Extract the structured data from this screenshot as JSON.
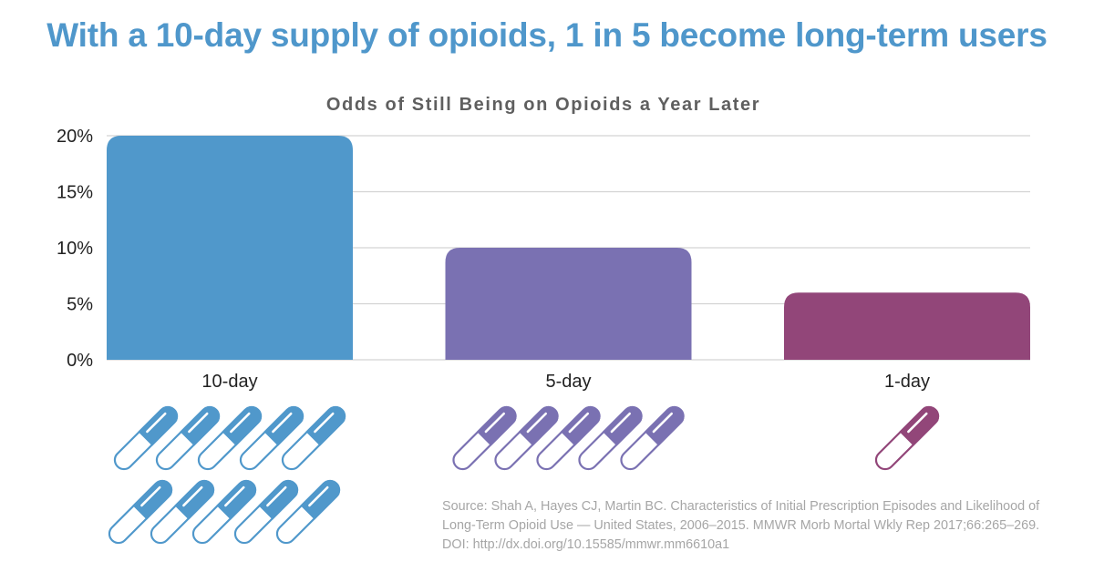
{
  "headline": "With a 10-day supply of opioids, 1 in 5 become long-term users",
  "chart_data": {
    "type": "bar",
    "title": "Odds of Still Being on Opioids a Year Later",
    "xlabel": "",
    "ylabel": "",
    "categories": [
      "10-day",
      "5-day",
      "1-day"
    ],
    "values": [
      20,
      10,
      6
    ],
    "unit": "%",
    "ylim": [
      0,
      20
    ],
    "yticks": [
      0,
      5,
      10,
      15,
      20
    ],
    "ytick_labels": [
      "0%",
      "5%",
      "10%",
      "15%",
      "20%"
    ],
    "grid": true,
    "legend": "none",
    "colors": [
      "#5098cb",
      "#7a71b2",
      "#924679"
    ],
    "pill_counts": [
      10,
      5,
      1
    ]
  },
  "source": {
    "text": "Source: Shah A, Hayes CJ, Martin BC. Characteristics of Initial Prescription Episodes and Likelihood of Long-Term Opioid Use — United States, 2006–2015. MMWR Morb Mortal Wkly Rep 2017;66:265–269. DOI: http://dx.doi.org/10.15585/mmwr.mm6610a1"
  }
}
